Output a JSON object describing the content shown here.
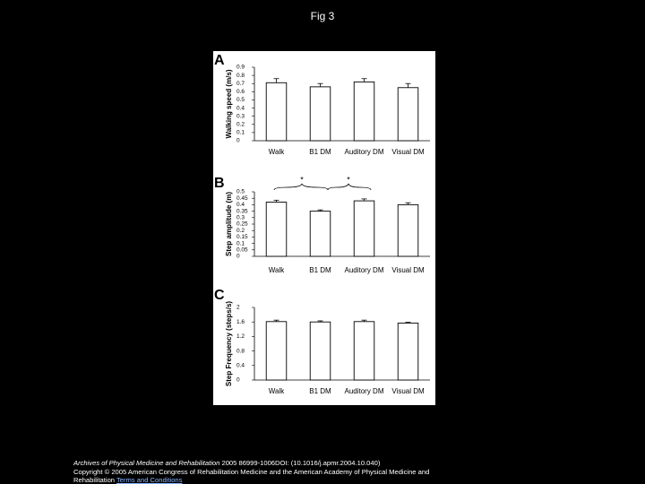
{
  "title": "Fig 3",
  "footer": {
    "journal": "Archives of Physical Medicine and Rehabilitation",
    "citation": "2005 86999-1006DOI: (10.1016/j.apmr.2004.10.040)",
    "copyright": "Copyright © 2005 American Congress of Rehabilitation Medicine and the American Academy of Physical Medicine and Rehabilitation",
    "link": "Terms and Conditions"
  },
  "chart_data": [
    {
      "type": "bar",
      "panel": "A",
      "y_label": "Walking speed (m/s)",
      "categories": [
        "Walk",
        "B1 DM",
        "Auditory DM",
        "Visual DM"
      ],
      "values": [
        0.71,
        0.66,
        0.72,
        0.65
      ],
      "errors": [
        0.05,
        0.04,
        0.04,
        0.05
      ],
      "ylim": [
        0,
        0.9
      ],
      "yticks": [
        0,
        0.1,
        0.2,
        0.3,
        0.4,
        0.5,
        0.6,
        0.7,
        0.8,
        0.9
      ],
      "color": "#ffffff"
    },
    {
      "type": "bar",
      "panel": "B",
      "y_label": "Step amplitude (m)",
      "categories": [
        "Walk",
        "B1 DM",
        "Auditory DM",
        "Visual DM"
      ],
      "values": [
        0.42,
        0.35,
        0.43,
        0.4
      ],
      "errors": [
        0.015,
        0.01,
        0.015,
        0.015
      ],
      "ylim": [
        0,
        0.5
      ],
      "yticks": [
        0,
        0.05,
        0.1,
        0.15,
        0.2,
        0.25,
        0.3,
        0.35,
        0.4,
        0.45,
        0.5
      ],
      "color": "#ffffff",
      "annotations": [
        "*",
        "*"
      ]
    },
    {
      "type": "bar",
      "panel": "C",
      "y_label": "Step Frequency (steps/s)",
      "categories": [
        "Walk",
        "B1 DM",
        "Auditory DM",
        "Visual DM"
      ],
      "values": [
        1.61,
        1.6,
        1.61,
        1.57
      ],
      "errors": [
        0.04,
        0.03,
        0.04,
        0.02
      ],
      "ylim": [
        0,
        2
      ],
      "yticks": [
        0,
        0.4,
        0.8,
        1.2,
        1.6,
        2
      ],
      "color": "#ffffff"
    }
  ]
}
